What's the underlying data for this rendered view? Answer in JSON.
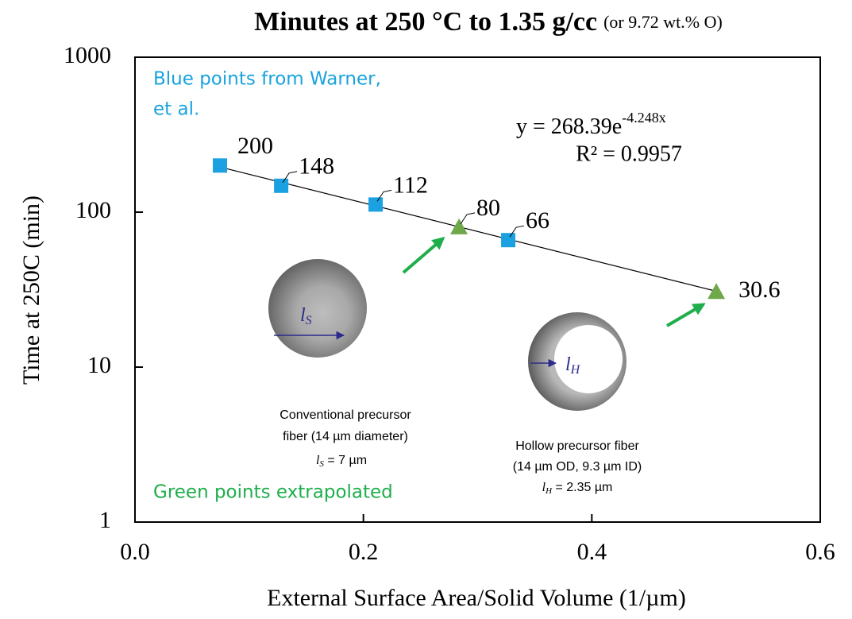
{
  "chart_data": {
    "type": "scatter",
    "title": "Minutes at 250 °C to 1.35 g/cc",
    "subtitle": "(or 9.72 wt.% O)",
    "x_label": "External Surface Area/Solid Volume (1/µm)",
    "y_label": "Time at 250C (min)",
    "xlim": [
      0,
      0.6
    ],
    "xticks": [
      {
        "value": 0,
        "label": "0.0"
      },
      0.2,
      0.4,
      0.6
    ],
    "ylim": [
      1,
      1000
    ],
    "yticks": [
      1,
      10,
      100,
      1000
    ],
    "y_scale": "log",
    "series": [
      {
        "color": "#1ba1e2",
        "marker": "square",
        "x": [
          0.0744,
          0.128,
          0.2107,
          0.3268
        ],
        "values": [
          200,
          148,
          112,
          66
        ]
      },
      {
        "color": "#6ea84a",
        "marker": "triangle",
        "x": [
          0.2837,
          0.509
        ],
        "values": [
          80,
          30.6
        ]
      }
    ],
    "trendline": {
      "coefficient": 268.39,
      "exponent": -4.248,
      "color": "#000000"
    },
    "equation": {
      "main": "y = 268.39e",
      "power": "-4.248x"
    },
    "r_squared": "R² = 0.9957",
    "annotations": {
      "blue_note": [
        "Blue points from Warner,",
        "et al."
      ],
      "green_note": "Green points extrapolated",
      "solid_fiber": {
        "lines": [
          "Conventional precursor",
          "fiber (14 µm diameter)"
        ],
        "symbol": "l",
        "sub": "S",
        "value": " = 7 µm"
      },
      "hollow_fiber": {
        "lines": [
          "Hollow precursor fiber",
          "(14 µm OD, 9.3 µm ID)"
        ],
        "symbol": "l",
        "sub": "H",
        "value": " = 2.35 µm"
      }
    }
  }
}
